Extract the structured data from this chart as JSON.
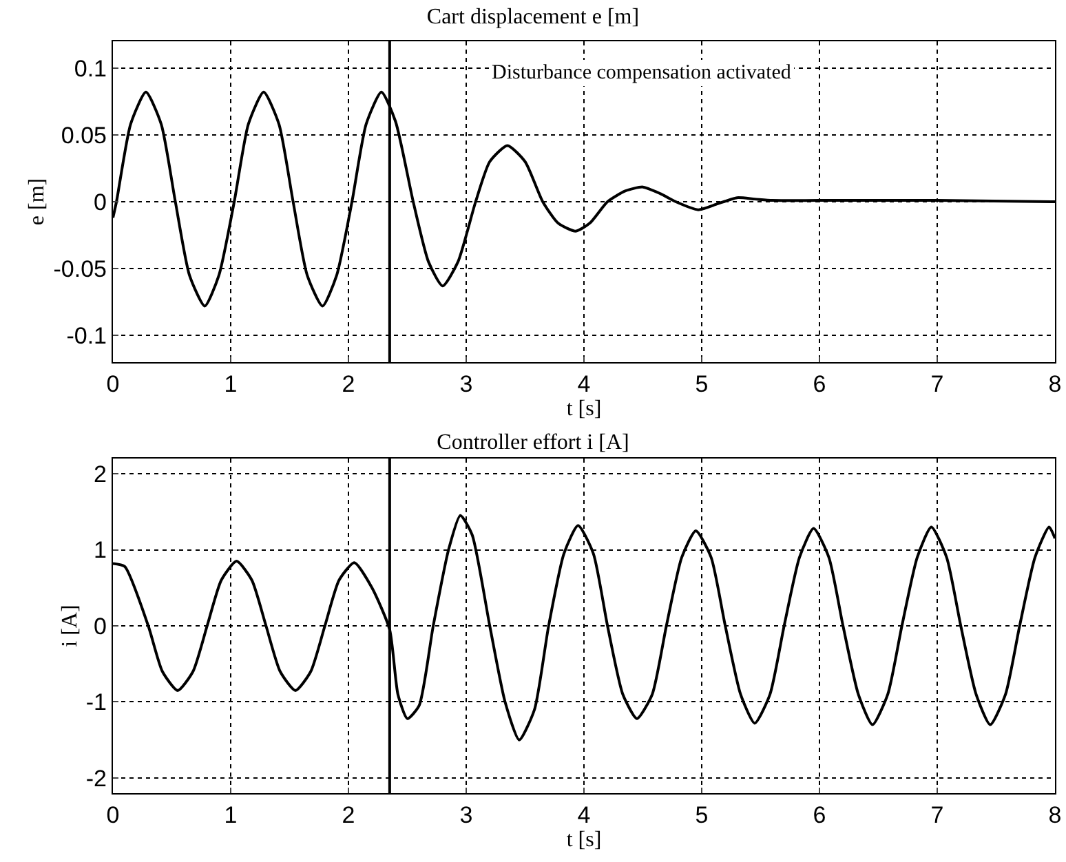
{
  "chart_data": [
    {
      "type": "line",
      "title": "Cart displacement e [m]",
      "xlabel": "t [s]",
      "ylabel": "e [m]",
      "color": "#000000",
      "x": [
        0,
        0.03,
        0.15,
        0.28,
        0.41,
        0.53,
        0.65,
        0.78,
        0.9,
        1.03,
        1.15,
        1.28,
        1.41,
        1.53,
        1.65,
        1.78,
        1.9,
        2.03,
        2.15,
        2.28,
        2.4,
        2.55,
        2.68,
        2.8,
        2.93,
        3.08,
        3.2,
        3.35,
        3.5,
        3.65,
        3.78,
        3.93,
        4.05,
        4.2,
        4.35,
        4.5,
        4.65,
        4.78,
        4.97,
        5.12,
        5.3,
        5.45,
        5.6,
        6,
        7,
        8
      ],
      "values": [
        -0.012,
        0,
        0.058,
        0.082,
        0.058,
        0,
        -0.055,
        -0.078,
        -0.055,
        0,
        0.058,
        0.082,
        0.058,
        0,
        -0.055,
        -0.078,
        -0.055,
        0,
        0.058,
        0.082,
        0.06,
        0,
        -0.045,
        -0.063,
        -0.045,
        0,
        0.03,
        0.042,
        0.03,
        0,
        -0.016,
        -0.022,
        -0.016,
        0,
        0.008,
        0.011,
        0.006,
        0,
        -0.006,
        -0.002,
        0.003,
        0.002,
        0.001,
        0.001,
        0.001,
        0
      ],
      "xlim": [
        0,
        8
      ],
      "xticks": [
        0,
        1,
        2,
        3,
        4,
        5,
        6,
        7,
        8
      ],
      "ylim": [
        -0.12,
        0.12
      ],
      "yticks": [
        -0.1,
        -0.05,
        0,
        0.05,
        0.1
      ],
      "grid": true,
      "ref_lines": [
        {
          "axis": "x",
          "value": 2.35,
          "label": "Disturbance compensation activated",
          "color": "#000000"
        }
      ]
    },
    {
      "type": "line",
      "title": "Controller effort i [A]",
      "xlabel": "t [s]",
      "ylabel": "i [A]",
      "color": "#000000",
      "x": [
        0,
        0.1,
        0.3,
        0.42,
        0.55,
        0.68,
        0.8,
        0.92,
        1.05,
        1.18,
        1.3,
        1.42,
        1.55,
        1.68,
        1.8,
        1.92,
        2.05,
        2.2,
        2.35,
        2.42,
        2.5,
        2.6,
        2.72,
        2.85,
        2.95,
        3.05,
        3.2,
        3.33,
        3.45,
        3.58,
        3.7,
        3.83,
        3.95,
        4.08,
        4.2,
        4.33,
        4.45,
        4.58,
        4.7,
        4.83,
        4.95,
        5.08,
        5.2,
        5.33,
        5.45,
        5.58,
        5.7,
        5.83,
        5.95,
        6.08,
        6.2,
        6.33,
        6.45,
        6.58,
        6.7,
        6.83,
        6.95,
        7.08,
        7.2,
        7.33,
        7.45,
        7.58,
        7.7,
        7.83,
        7.95,
        8
      ],
      "values": [
        0.82,
        0.78,
        0,
        -0.6,
        -0.85,
        -0.6,
        0,
        0.6,
        0.85,
        0.6,
        0,
        -0.6,
        -0.85,
        -0.6,
        0,
        0.6,
        0.83,
        0.5,
        -0.05,
        -0.9,
        -1.22,
        -1.05,
        0,
        1.0,
        1.45,
        1.2,
        0,
        -1.0,
        -1.5,
        -1.1,
        0,
        0.95,
        1.32,
        0.95,
        0,
        -0.9,
        -1.22,
        -0.9,
        0,
        0.9,
        1.25,
        0.9,
        0,
        -0.9,
        -1.28,
        -0.9,
        0,
        0.9,
        1.28,
        0.9,
        0,
        -0.9,
        -1.3,
        -0.9,
        0,
        0.9,
        1.3,
        0.9,
        0,
        -0.9,
        -1.3,
        -0.9,
        0,
        0.9,
        1.3,
        1.15
      ],
      "xlim": [
        0,
        8
      ],
      "xticks": [
        0,
        1,
        2,
        3,
        4,
        5,
        6,
        7,
        8
      ],
      "ylim": [
        -2.2,
        2.2
      ],
      "yticks": [
        -2,
        -1,
        0,
        1,
        2
      ],
      "grid": true,
      "ref_lines": [
        {
          "axis": "x",
          "value": 2.35,
          "color": "#000000"
        }
      ]
    }
  ]
}
